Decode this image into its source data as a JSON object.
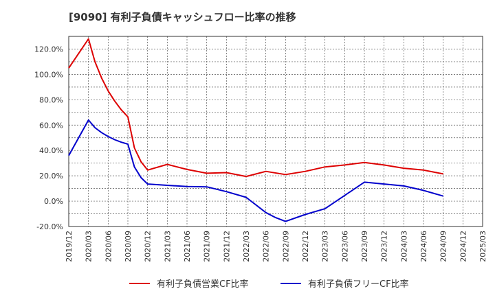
{
  "chart_data": {
    "type": "line",
    "title": "[9090]  有利子負債キャッシュフロー比率の推移",
    "xlabel": "",
    "ylabel": "",
    "ylim": [
      -20,
      130
    ],
    "yticks": [
      -20,
      0,
      20,
      40,
      60,
      80,
      100,
      120
    ],
    "ytick_labels": [
      "-20.0%",
      "0.0%",
      "20.0%",
      "40.0%",
      "60.0%",
      "80.0%",
      "100.0%",
      "120.0%"
    ],
    "xticks": [
      "2019/12",
      "2020/03",
      "2020/06",
      "2020/09",
      "2020/12",
      "2021/03",
      "2021/06",
      "2021/09",
      "2021/12",
      "2022/03",
      "2022/06",
      "2022/09",
      "2022/12",
      "2023/03",
      "2023/06",
      "2023/09",
      "2023/12",
      "2024/03",
      "2024/06",
      "2024/09",
      "2024/12",
      "2025/03"
    ],
    "grid": true,
    "legend_position": "bottom",
    "series": [
      {
        "name": "有利子負債営業CF比率",
        "color": "#dd0000",
        "points": [
          [
            0,
            105
          ],
          [
            1,
            128
          ],
          [
            1.33,
            110
          ],
          [
            1.67,
            97
          ],
          [
            2,
            87
          ],
          [
            2.33,
            79
          ],
          [
            2.67,
            72
          ],
          [
            3,
            66.5
          ],
          [
            3.33,
            42
          ],
          [
            3.67,
            31
          ],
          [
            4,
            24.5
          ],
          [
            5,
            29
          ],
          [
            6,
            25
          ],
          [
            7,
            22
          ],
          [
            8,
            22.5
          ],
          [
            9,
            19.5
          ],
          [
            10,
            23.5
          ],
          [
            11,
            21
          ],
          [
            12,
            23.5
          ],
          [
            13,
            27
          ],
          [
            14,
            28.5
          ],
          [
            15,
            30.5
          ],
          [
            16,
            28.5
          ],
          [
            17,
            26
          ],
          [
            18,
            24.5
          ],
          [
            19,
            21.5
          ]
        ]
      },
      {
        "name": "有利子負債フリーCF比率",
        "color": "#0000cc",
        "points": [
          [
            0,
            36
          ],
          [
            1,
            64
          ],
          [
            1.33,
            58
          ],
          [
            1.67,
            54
          ],
          [
            2,
            51
          ],
          [
            2.33,
            48.5
          ],
          [
            2.67,
            46.5
          ],
          [
            3,
            45
          ],
          [
            3.33,
            27
          ],
          [
            3.67,
            18.5
          ],
          [
            4,
            13.5
          ],
          [
            5,
            12.5
          ],
          [
            6,
            11.5
          ],
          [
            7,
            11.3
          ],
          [
            8,
            7.5
          ],
          [
            9,
            3
          ],
          [
            10,
            -9
          ],
          [
            10.5,
            -13
          ],
          [
            11,
            -16
          ],
          [
            12,
            -10.5
          ],
          [
            13,
            -6
          ],
          [
            14,
            4.5
          ],
          [
            15,
            15
          ],
          [
            16,
            13.5
          ],
          [
            17,
            12
          ],
          [
            18,
            8.5
          ],
          [
            19,
            4
          ]
        ]
      }
    ]
  }
}
